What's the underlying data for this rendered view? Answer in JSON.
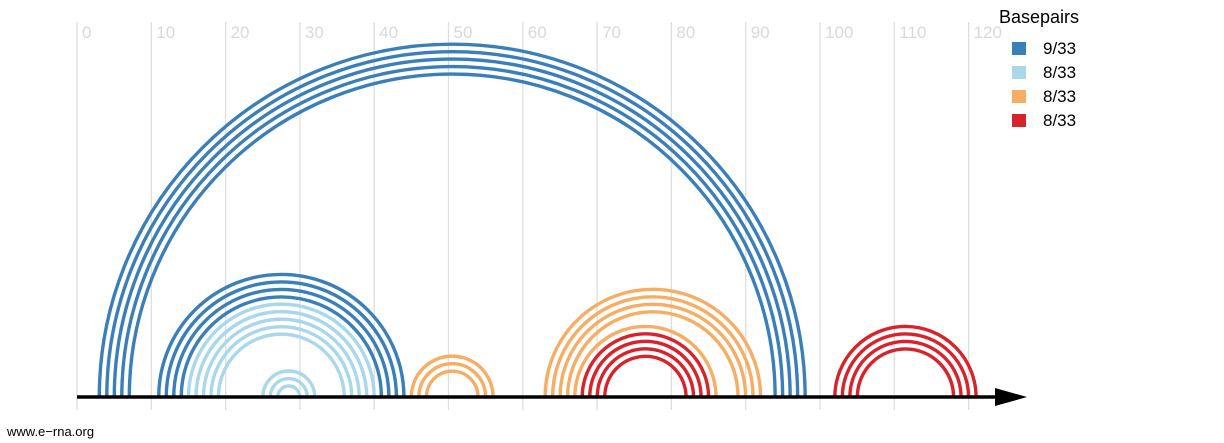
{
  "colors": {
    "grid": "#dedede",
    "tick_text": "#d9d9d9",
    "axis": "#000000"
  },
  "chart_data": {
    "type": "arc",
    "x_ticks": [
      0,
      10,
      20,
      30,
      40,
      50,
      60,
      70,
      80,
      90,
      100,
      110,
      120
    ],
    "legend": {
      "title": "Basepairs",
      "placement": "top-right",
      "entries": [
        {
          "label": "9/33",
          "color": "#3a7fb9"
        },
        {
          "label": "8/33",
          "color": "#a9d8ea"
        },
        {
          "label": "8/33",
          "color": "#f7ad63"
        },
        {
          "label": "8/33",
          "color": "#d8232a"
        }
      ]
    },
    "helices": [
      {
        "group": 0,
        "i_start": 3,
        "j_start": 98,
        "count": 5
      },
      {
        "group": 0,
        "i_start": 11,
        "j_start": 44,
        "count": 4
      },
      {
        "group": 1,
        "i_start": 15,
        "j_start": 40,
        "count": 5
      },
      {
        "group": 1,
        "i_start": 25,
        "j_start": 32,
        "count": 3
      },
      {
        "group": 2,
        "i_start": 45,
        "j_start": 56,
        "count": 3
      },
      {
        "group": 2,
        "i_start": 63,
        "j_start": 92,
        "count": 4
      },
      {
        "group": 2,
        "i_start": 67,
        "j_start": 86,
        "count": 1
      },
      {
        "group": 3,
        "i_start": 68,
        "j_start": 85,
        "count": 4
      },
      {
        "group": 3,
        "i_start": 102,
        "j_start": 121,
        "count": 4
      }
    ]
  },
  "footer": {
    "text": "www.e−rna.org"
  }
}
